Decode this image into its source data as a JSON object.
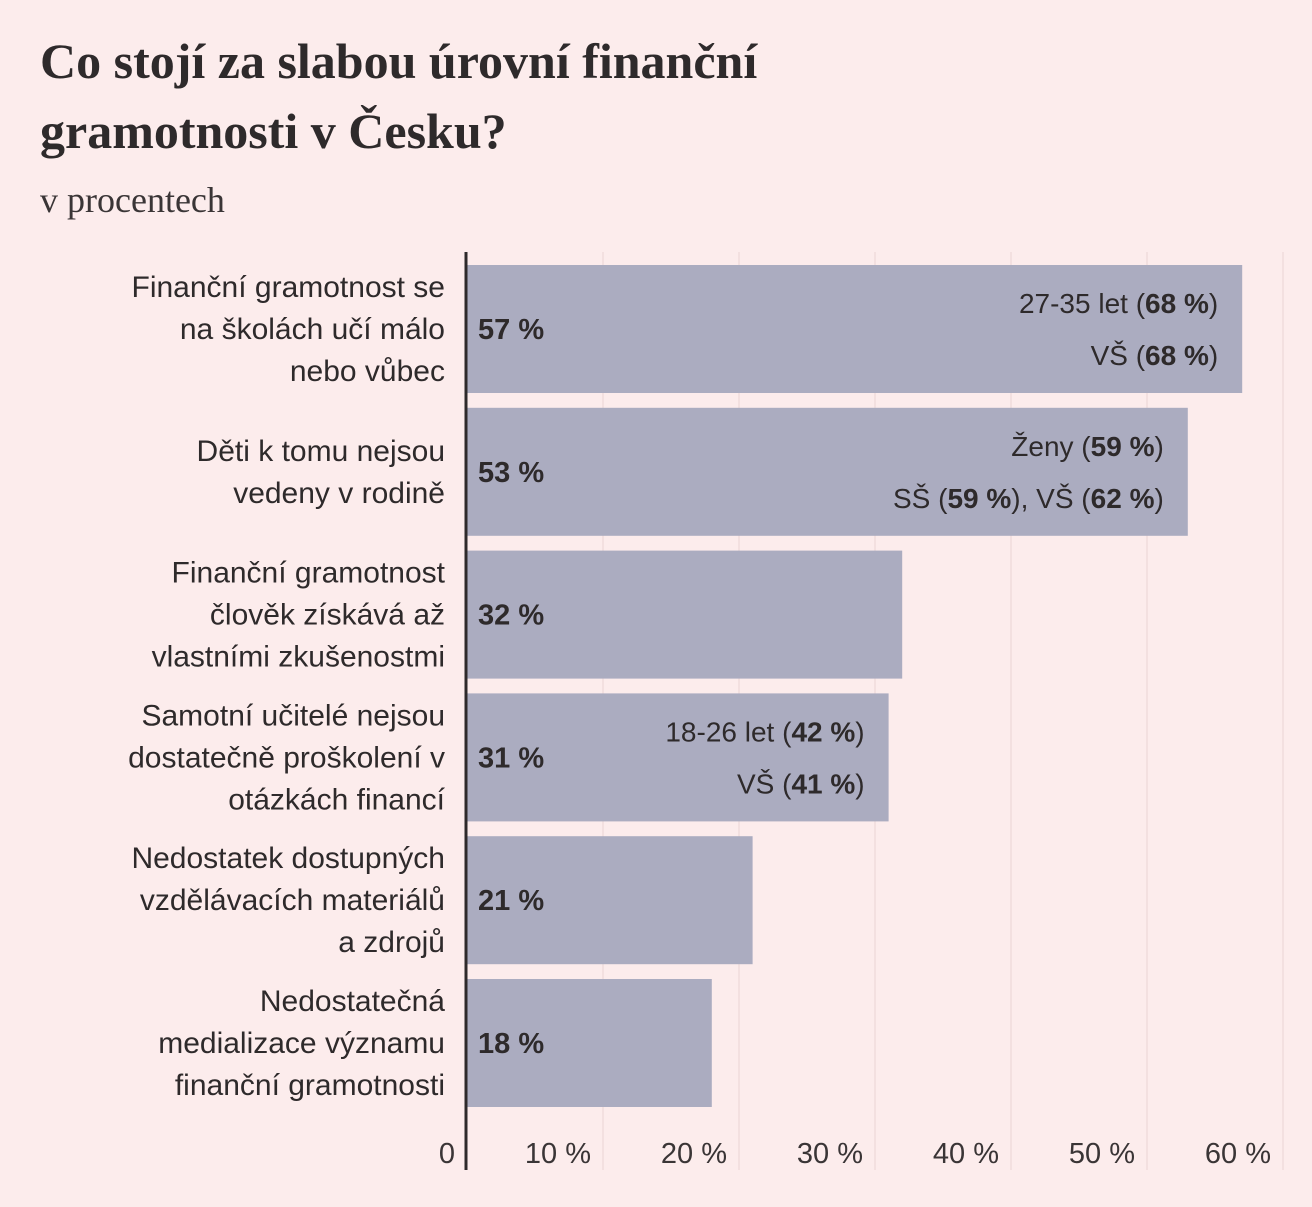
{
  "chart_data": {
    "type": "bar",
    "orientation": "horizontal",
    "title": [
      "Co stojí za slabou úrovní finanční",
      "gramotnosti v Česku?"
    ],
    "subtitle": "v procentech",
    "categories": [
      [
        "Finanční gramotnost se",
        "na školách učí málo",
        "nebo vůbec"
      ],
      [
        "Děti k tomu nejsou",
        "vedeny v rodině"
      ],
      [
        "Finanční gramotnost",
        "člověk získává až",
        "vlastními zkušenostmi"
      ],
      [
        "Samotní učitelé nejsou",
        "dostatečně proškolení v",
        "otázkách financí"
      ],
      [
        "Nedostatek dostupných",
        "vzdělávacích materiálů",
        "a zdrojů"
      ],
      [
        "Nedostatečná",
        "medializace významu",
        "finanční gramotnosti"
      ]
    ],
    "values": [
      57,
      53,
      32,
      31,
      21,
      18
    ],
    "value_labels": [
      "57 %",
      "53 %",
      "32 %",
      "31 %",
      "21 %",
      "18 %"
    ],
    "annotations": [
      [
        [
          "27-35 let (",
          "68 %",
          ")"
        ],
        [
          "VŠ (",
          "68 %",
          ")"
        ]
      ],
      [
        [
          "Ženy (",
          "59 %",
          ")"
        ],
        [
          "SŠ (",
          "59 %",
          "), VŠ (",
          "62 %",
          ")"
        ]
      ],
      null,
      [
        [
          "18-26 let (",
          "42 %",
          ")"
        ],
        [
          "VŠ (",
          "41 %",
          ")"
        ]
      ],
      null,
      null
    ],
    "color": "#abacc0",
    "xlim": [
      0,
      60
    ],
    "xticks": [
      0,
      {
        "value": 10,
        "label": "10 %"
      },
      {
        "value": 20,
        "label": "20 %"
      },
      {
        "value": 30,
        "label": "30 %"
      },
      {
        "value": 40,
        "label": "40 %"
      },
      {
        "value": 50,
        "label": "50 %"
      },
      {
        "value": 60,
        "label": "60 %"
      }
    ],
    "grid": true
  }
}
